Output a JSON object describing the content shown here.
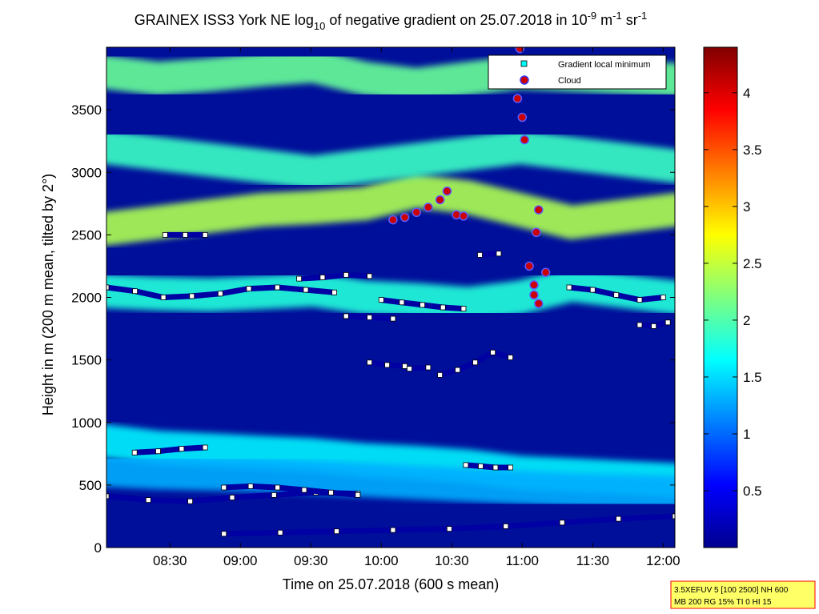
{
  "chart_data": {
    "type": "heatmap",
    "title": {
      "pre": "GRAINEX ISS3 York NE log",
      "sub": "10",
      "mid": " of negative gradient on 25.07.2018 in 10",
      "sup1": "-9",
      "unit1": " m",
      "sup2": "-1",
      "unit2": " sr",
      "sup3": "-1"
    },
    "xlabel": "Time on 25.07.2018 (600 s mean)",
    "ylabel": "Height in m (200 m mean, tilted by 2°)",
    "xlim": [
      "08:03",
      "12:05"
    ],
    "ylim": [
      0,
      4000
    ],
    "x_ticks": [
      "08:30",
      "09:00",
      "09:30",
      "10:00",
      "10:30",
      "11:00",
      "11:30",
      "12:00"
    ],
    "y_ticks": [
      "0",
      "500",
      "1000",
      "1500",
      "2000",
      "2500",
      "3000",
      "3500"
    ],
    "colorbar": {
      "range": [
        0,
        4.4
      ],
      "ticks": [
        "0.5",
        "1",
        "1.5",
        "2",
        "2.5",
        "3",
        "3.5",
        "4"
      ],
      "colormap": "jet"
    },
    "legend": {
      "position": "top-right",
      "entries": [
        {
          "label": "Gradient local minimum",
          "marker": "square",
          "color": "#00ffff"
        },
        {
          "label": "Cloud",
          "marker": "circle",
          "color": "#cc0000"
        }
      ]
    },
    "layers": [
      {
        "start": "08:03",
        "end": "12:05",
        "height": [
          850,
          800,
          780,
          760,
          740,
          700,
          680,
          650,
          600,
          580,
          560,
          540
        ],
        "value": 1.6
      },
      {
        "start": "08:03",
        "end": "12:05",
        "height": [
          620,
          600,
          590,
          580,
          560,
          540,
          520,
          500,
          480,
          460,
          450,
          440
        ],
        "value": 1.3
      },
      {
        "start": "08:03",
        "end": "12:05",
        "height": [
          2050,
          2030,
          2020,
          2040,
          2060,
          2000,
          1980,
          1950,
          2000,
          2100,
          2050,
          2000
        ],
        "value": 1.8
      },
      {
        "start": "08:03",
        "end": "12:05",
        "height": [
          2550,
          2600,
          2650,
          2700,
          2720,
          2750,
          2850,
          2800,
          2700,
          2600,
          2650,
          2700
        ],
        "value": 2.4
      },
      {
        "start": "08:03",
        "end": "12:05",
        "height": [
          3200,
          3150,
          3100,
          3050,
          3000,
          3050,
          3100,
          3150,
          3200,
          3150,
          3100,
          3050
        ],
        "value": 1.9
      },
      {
        "start": "08:03",
        "end": "12:05",
        "height": [
          3800,
          3750,
          3780,
          3820,
          3850,
          3750,
          3700,
          3750,
          3800,
          3780,
          3760,
          3740
        ],
        "value": 2.1
      }
    ],
    "gradient_minimum_tracks": [
      {
        "start": "08:03",
        "end": "09:50",
        "height": [
          410,
          380,
          370,
          400,
          420,
          440,
          430
        ],
        "value": 0.1
      },
      {
        "start": "08:53",
        "end": "12:05",
        "height": [
          110,
          120,
          130,
          140,
          150,
          170,
          200,
          230,
          250
        ],
        "value": 0.1
      },
      {
        "start": "08:53",
        "end": "09:50",
        "height": [
          480,
          490,
          480,
          460,
          440,
          420
        ],
        "value": 0.1
      },
      {
        "start": "08:15",
        "end": "08:45",
        "height": [
          760,
          770,
          790,
          800
        ],
        "value": 0.1
      },
      {
        "start": "10:36",
        "end": "10:55",
        "height": [
          660,
          650,
          640,
          640
        ],
        "value": 0.1
      },
      {
        "start": "08:03",
        "end": "09:40",
        "height": [
          2080,
          2050,
          2000,
          2010,
          2030,
          2070,
          2080,
          2060,
          2040
        ],
        "value": 0.1
      },
      {
        "start": "09:25",
        "end": "09:55",
        "height": [
          2150,
          2160,
          2180,
          2170
        ],
        "value": 0.1
      },
      {
        "start": "10:00",
        "end": "10:35",
        "height": [
          1980,
          1960,
          1940,
          1920,
          1910
        ],
        "value": 0.1
      },
      {
        "start": "09:45",
        "end": "10:05",
        "height": [
          1850,
          1840,
          1830
        ],
        "value": 0.1
      },
      {
        "start": "09:55",
        "end": "10:10",
        "height": [
          1480,
          1460,
          1450
        ],
        "value": 0.1
      },
      {
        "start": "10:12",
        "end": "10:20",
        "height": [
          1430,
          1440
        ],
        "value": 0.1
      },
      {
        "start": "10:25",
        "end": "10:55",
        "height": [
          1380,
          1420,
          1480,
          1560,
          1520
        ],
        "value": 0.1
      },
      {
        "start": "08:28",
        "end": "08:45",
        "height": [
          2500,
          2500,
          2500
        ],
        "value": 0.1
      },
      {
        "start": "10:42",
        "end": "10:50",
        "height": [
          2340,
          2350
        ],
        "value": 0.1
      },
      {
        "start": "11:20",
        "end": "12:00",
        "height": [
          2080,
          2060,
          2020,
          1980,
          2000
        ],
        "value": 0.1
      },
      {
        "start": "11:50",
        "end": "12:02",
        "height": [
          1780,
          1770,
          1800
        ],
        "value": 0.1
      }
    ],
    "cloud_points": [
      {
        "time": "10:05",
        "height": 2620
      },
      {
        "time": "10:10",
        "height": 2640
      },
      {
        "time": "10:15",
        "height": 2680
      },
      {
        "time": "10:20",
        "height": 2720
      },
      {
        "time": "10:25",
        "height": 2780
      },
      {
        "time": "10:28",
        "height": 2850
      },
      {
        "time": "10:32",
        "height": 2660
      },
      {
        "time": "10:35",
        "height": 2650
      },
      {
        "time": "10:58",
        "height": 3590
      },
      {
        "time": "11:00",
        "height": 3440
      },
      {
        "time": "11:01",
        "height": 3260
      },
      {
        "time": "10:59",
        "height": 3990
      },
      {
        "time": "11:03",
        "height": 2250
      },
      {
        "time": "11:05",
        "height": 2100
      },
      {
        "time": "11:07",
        "height": 1950
      },
      {
        "time": "11:06",
        "height": 2520
      },
      {
        "time": "11:07",
        "height": 2700
      },
      {
        "time": "11:10",
        "height": 2200
      },
      {
        "time": "11:05",
        "height": 2020
      }
    ],
    "info_box": {
      "line1": "3.5XEFUV 5 [100 2500] NH 600",
      "line2": "MB 200 RG 15% TI 0 HI 15"
    }
  }
}
